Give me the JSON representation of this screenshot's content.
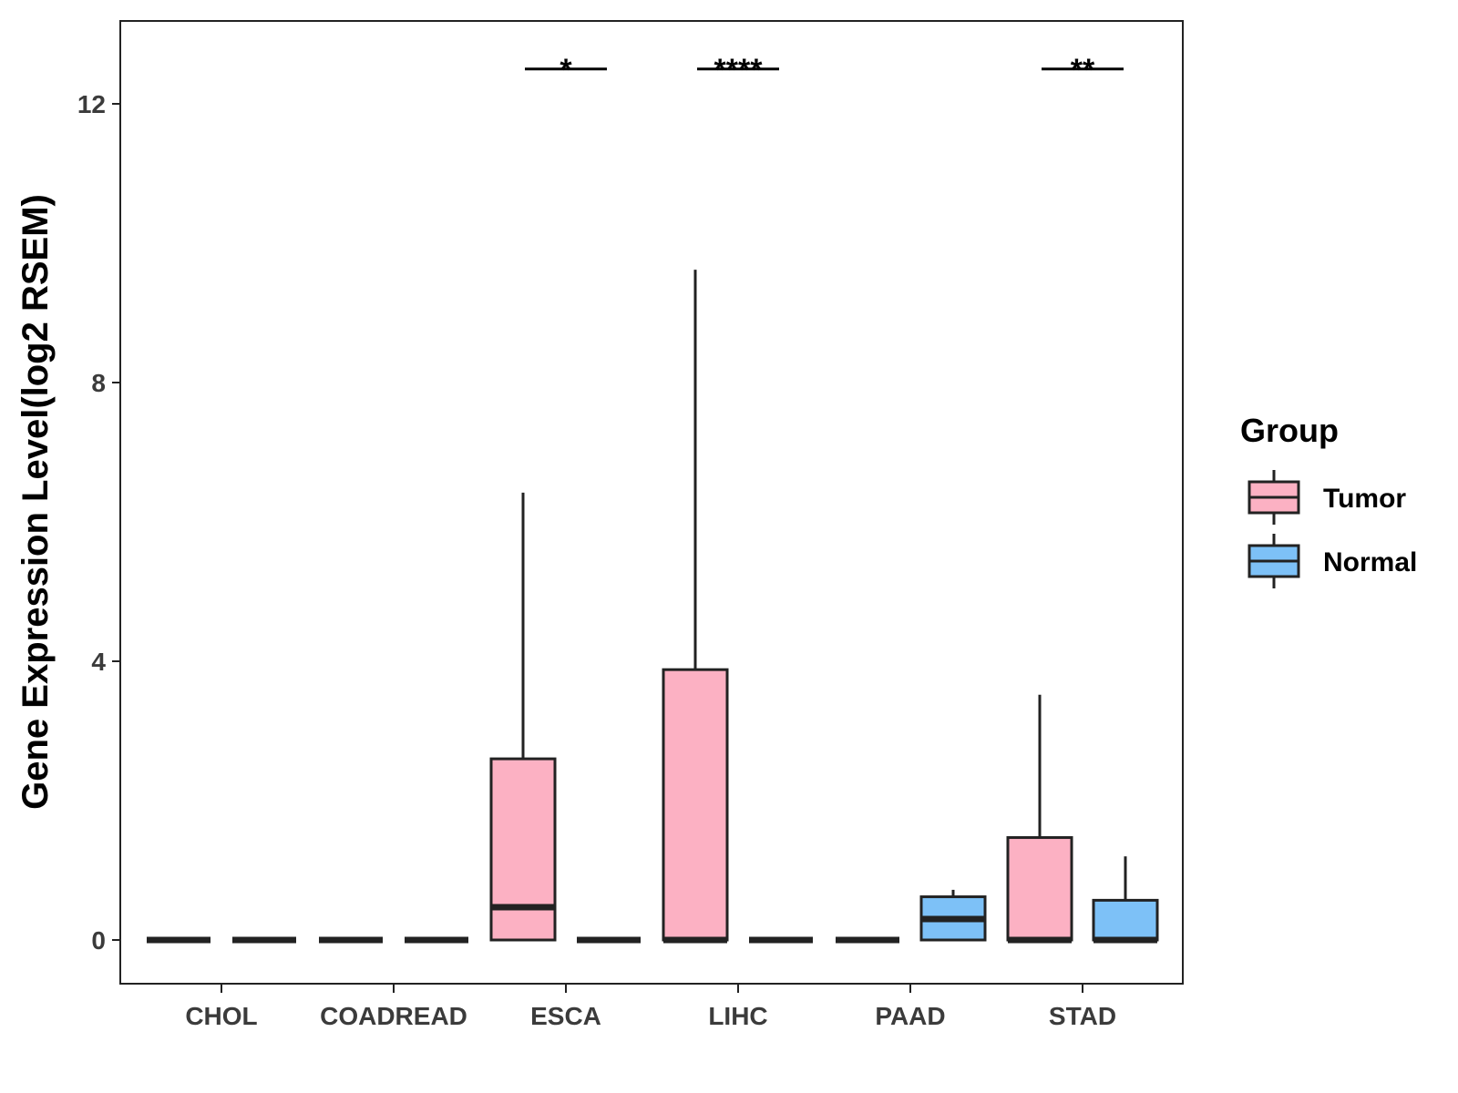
{
  "chart_data": {
    "type": "box",
    "ylabel": "Gene Expression Level(log2 RSEM)",
    "xlabel": "",
    "ylim": [
      -0.6,
      13.2
    ],
    "yticks": [
      0,
      4,
      8,
      12
    ],
    "ytick_labels": [
      "0",
      "4",
      "8",
      "12"
    ],
    "categories": [
      "CHOL",
      "COADREAD",
      "ESCA",
      "LIHC",
      "PAAD",
      "STAD"
    ],
    "grid": false,
    "legend": {
      "title": "Group",
      "position": "right",
      "entries": [
        {
          "name": "Tumor",
          "color": "#fcb1c3"
        },
        {
          "name": "Normal",
          "color": "#7dc1f7"
        }
      ]
    },
    "series": [
      {
        "name": "Tumor",
        "color": "#fcb1c3",
        "boxes": [
          {
            "category": "CHOL",
            "min": 0,
            "q1": 0,
            "median": 0,
            "q3": 0,
            "max": 0
          },
          {
            "category": "COADREAD",
            "min": 0,
            "q1": 0,
            "median": 0,
            "q3": 0,
            "max": 0
          },
          {
            "category": "ESCA",
            "min": 0,
            "q1": 0,
            "median": 0.47,
            "q3": 2.6,
            "max": 6.42
          },
          {
            "category": "LIHC",
            "min": 0,
            "q1": 0,
            "median": 0,
            "q3": 3.88,
            "max": 9.62
          },
          {
            "category": "PAAD",
            "min": 0,
            "q1": 0,
            "median": 0,
            "q3": 0,
            "max": 0
          },
          {
            "category": "STAD",
            "min": 0,
            "q1": 0,
            "median": 0,
            "q3": 1.47,
            "max": 3.52
          }
        ]
      },
      {
        "name": "Normal",
        "color": "#7dc1f7",
        "boxes": [
          {
            "category": "CHOL",
            "min": 0,
            "q1": 0,
            "median": 0,
            "q3": 0,
            "max": 0
          },
          {
            "category": "COADREAD",
            "min": 0,
            "q1": 0,
            "median": 0,
            "q3": 0,
            "max": 0
          },
          {
            "category": "ESCA",
            "min": 0,
            "q1": 0,
            "median": 0,
            "q3": 0,
            "max": 0
          },
          {
            "category": "LIHC",
            "min": 0,
            "q1": 0,
            "median": 0,
            "q3": 0,
            "max": 0
          },
          {
            "category": "PAAD",
            "min": 0,
            "q1": 0,
            "median": 0.3,
            "q3": 0.62,
            "max": 0.72
          },
          {
            "category": "STAD",
            "min": 0,
            "q1": 0,
            "median": 0,
            "q3": 0.57,
            "max": 1.2
          }
        ]
      }
    ],
    "annotations": [
      {
        "category": "ESCA",
        "label": "*",
        "y": 12.5
      },
      {
        "category": "LIHC",
        "label": "****",
        "y": 12.5
      },
      {
        "category": "STAD",
        "label": "**",
        "y": 12.5
      }
    ]
  }
}
